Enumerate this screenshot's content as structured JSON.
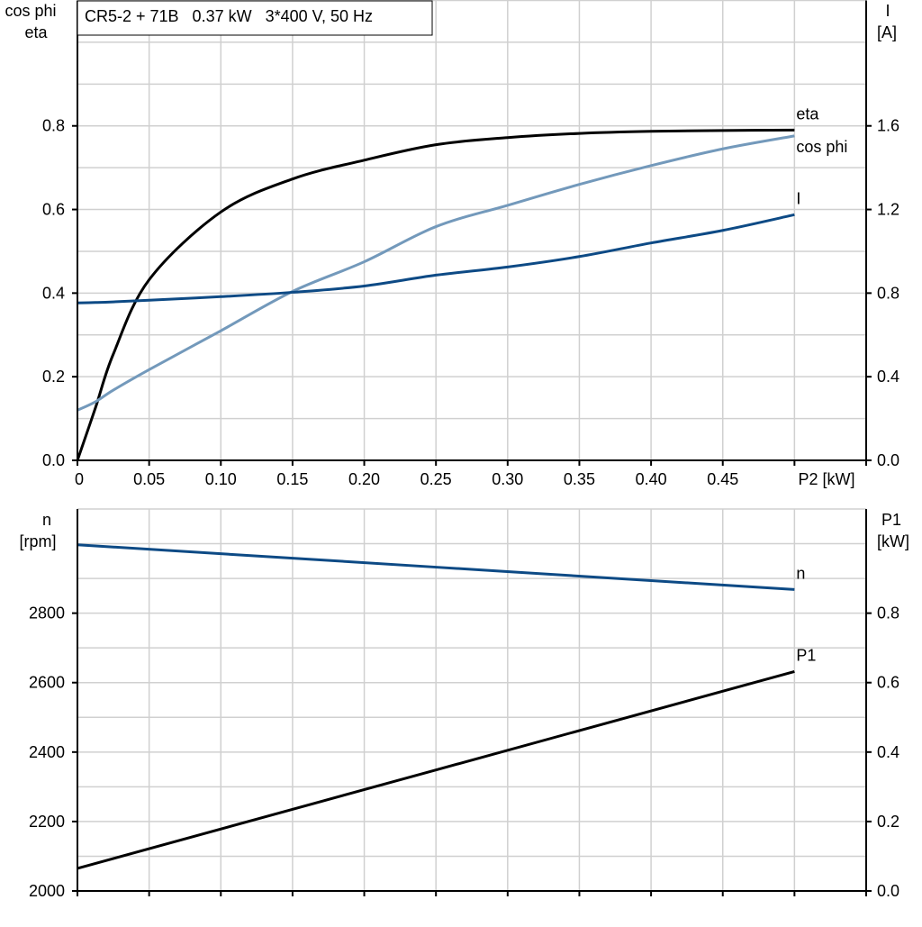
{
  "chart_data": [
    {
      "type": "line",
      "title": "CR5-2 + 71B   0.37 kW   3*400 V, 50 Hz",
      "xlabel": "P2 [kW]",
      "ylabel_left": [
        "cos phi",
        "eta"
      ],
      "ylabel_right": [
        "I",
        "[A]"
      ],
      "xlim": [
        0,
        0.55
      ],
      "ylim_left": [
        0,
        1.1
      ],
      "ylim_right": [
        0,
        2.2
      ],
      "x_ticks": [
        "0",
        "0.05",
        "0.10",
        "0.15",
        "0.20",
        "0.25",
        "0.30",
        "0.35",
        "0.40",
        "0.45"
      ],
      "y_ticks_left": [
        "0.0",
        "0.2",
        "0.4",
        "0.6",
        "0.8"
      ],
      "y_ticks_right": [
        "0.0",
        "0.4",
        "0.8",
        "1.2",
        "1.6"
      ],
      "grid": true,
      "x": [
        0,
        0.0125,
        0.025,
        0.05,
        0.1,
        0.15,
        0.2,
        0.25,
        0.3,
        0.35,
        0.4,
        0.45,
        0.5
      ],
      "series": [
        {
          "name": "eta",
          "axis": "left",
          "color": "#000000",
          "values": [
            0,
            0.125,
            0.254,
            0.432,
            0.594,
            0.673,
            0.718,
            0.755,
            0.772,
            0.782,
            0.787,
            0.789,
            0.79
          ]
        },
        {
          "name": "cos phi",
          "axis": "left",
          "color": "#7399bb",
          "values": [
            0.12,
            0.14,
            0.168,
            0.217,
            0.31,
            0.404,
            0.475,
            0.559,
            0.61,
            0.66,
            0.705,
            0.745,
            0.776
          ]
        },
        {
          "name": "I",
          "axis": "right",
          "color": "#0d4a85",
          "values": [
            0.753,
            0.755,
            0.758,
            0.766,
            0.783,
            0.804,
            0.834,
            0.886,
            0.925,
            0.975,
            1.04,
            1.1,
            1.175
          ]
        }
      ]
    },
    {
      "type": "line",
      "ylabel_left": [
        "n",
        "[rpm]"
      ],
      "ylabel_right": [
        "P1",
        "[kW]"
      ],
      "xlim": [
        0,
        0.55
      ],
      "ylim_left": [
        2000,
        3100
      ],
      "ylim_right": [
        0,
        1.1
      ],
      "y_ticks_left": [
        "2000",
        "2200",
        "2400",
        "2600",
        "2800"
      ],
      "y_ticks_right": [
        "0.0",
        "0.2",
        "0.4",
        "0.6",
        "0.8"
      ],
      "grid": true,
      "x": [
        0,
        0.5
      ],
      "series": [
        {
          "name": "n",
          "axis": "left",
          "color": "#0d4a85",
          "values": [
            2997,
            2868
          ]
        },
        {
          "name": "P1",
          "axis": "right",
          "color": "#000000",
          "values": [
            0.065,
            0.632
          ]
        }
      ]
    }
  ]
}
